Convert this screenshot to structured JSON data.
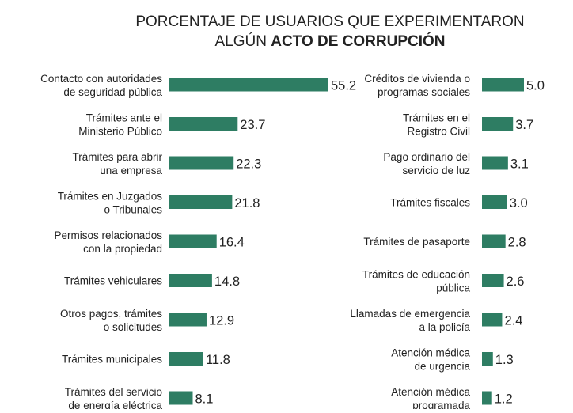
{
  "title": {
    "line1": "PORCENTAJE DE USUARIOS QUE EXPERIMENTARON",
    "line2_prefix": "ALGÚN ",
    "line2_bold": "ACTO DE CORRUPCIÓN"
  },
  "colors": {
    "bar": "#2e7d63",
    "text": "#222222",
    "background": "#ffffff"
  },
  "chart_data": {
    "type": "bar",
    "orientation": "horizontal",
    "title": "PORCENTAJE DE USUARIOS QUE EXPERIMENTARON ALGÚN ACTO DE CORRUPCIÓN",
    "xlabel": "",
    "ylabel": "",
    "unit": "%",
    "panels": [
      {
        "name": "left",
        "categories": [
          [
            "Contacto con autoridades",
            "de seguridad pública"
          ],
          [
            "Trámites ante el",
            "Ministerio Público"
          ],
          [
            "Trámites para abrir",
            "una empresa"
          ],
          [
            "Trámites en Juzgados",
            "o Tribunales"
          ],
          [
            "Permisos relacionados",
            "con la propiedad"
          ],
          [
            "Trámites vehiculares"
          ],
          [
            "Otros pagos, trámites",
            "o solicitudes"
          ],
          [
            "Trámites municipales"
          ],
          [
            "Trámites del servicio",
            "de energía eléctrica"
          ]
        ],
        "values": [
          55.2,
          23.7,
          22.3,
          21.8,
          16.4,
          14.8,
          12.9,
          11.8,
          8.1
        ],
        "value_labels": [
          "55.2",
          "23.7",
          "22.3",
          "21.8",
          "16.4",
          "14.8",
          "12.9",
          "11.8",
          "8.1"
        ]
      },
      {
        "name": "right",
        "categories": [
          [
            "Créditos de vivienda o",
            "programas sociales"
          ],
          [
            "Trámites en el",
            "Registro Civil"
          ],
          [
            "Pago ordinario del",
            "servicio de luz"
          ],
          [
            "Trámites fiscales"
          ],
          [
            "Trámites de pasaporte"
          ],
          [
            "Trámites de educación",
            "pública"
          ],
          [
            "Llamadas de emergencia",
            "a la policía"
          ],
          [
            "Atención médica",
            "de urgencia"
          ],
          [
            "Atención médica",
            "programada"
          ]
        ],
        "values": [
          5.0,
          3.7,
          3.1,
          3.0,
          2.8,
          2.6,
          2.4,
          1.3,
          1.2
        ],
        "value_labels": [
          "5.0",
          "3.7",
          "3.1",
          "3.0",
          "2.8",
          "2.6",
          "2.4",
          "1.3",
          "1.2"
        ]
      }
    ]
  }
}
